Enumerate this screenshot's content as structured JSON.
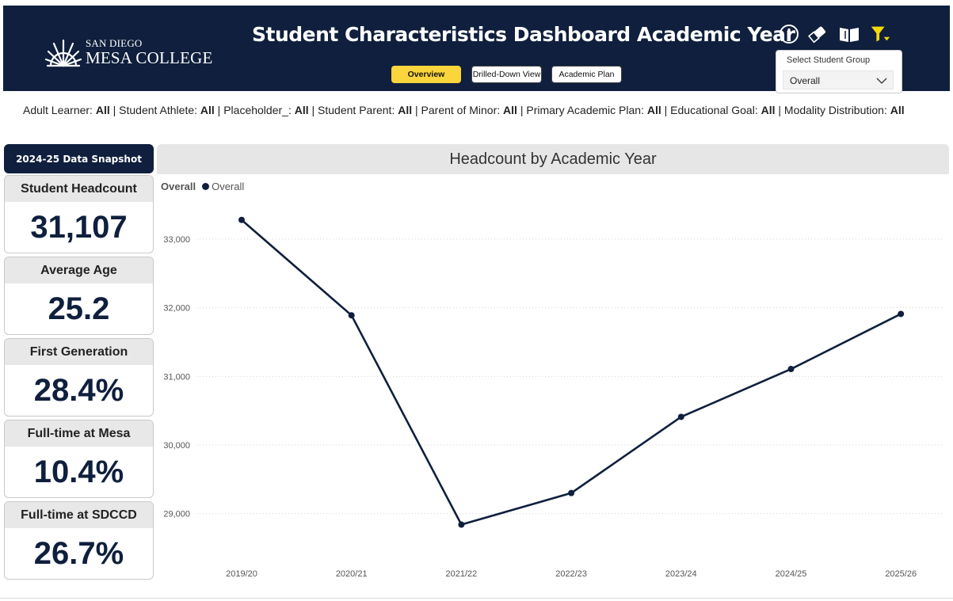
{
  "header": {
    "logo_line1": "SAN DIEGO",
    "logo_line2": "MESA COLLEGE",
    "title": "Student Characteristics Dashboard Academic Year",
    "nav": [
      {
        "label": "Overview",
        "active": true
      },
      {
        "label": "Drilled-Down View",
        "active": false
      },
      {
        "label": "Academic Plan",
        "active": false
      }
    ],
    "icons": [
      "info-icon",
      "eraser-icon",
      "book-icon",
      "filter-icon"
    ],
    "student_group": {
      "label": "Select Student Group",
      "value": "Overall"
    }
  },
  "filters": [
    {
      "name": "Adult Learner:",
      "value": "All"
    },
    {
      "name": "Student Athlete:",
      "value": "All"
    },
    {
      "name": "Placeholder_:",
      "value": "All"
    },
    {
      "name": "Student Parent:",
      "value": "All"
    },
    {
      "name": "Parent of Minor:",
      "value": "All"
    },
    {
      "name": "Primary Academic Plan:",
      "value": "All"
    },
    {
      "name": "Educational Goal:",
      "value": "All"
    },
    {
      "name": "Modality Distribution:",
      "value": "All"
    }
  ],
  "snapshot": {
    "title": "2024-25 Data Snapshot",
    "cards": [
      {
        "label": "Student Headcount",
        "value": "31,107"
      },
      {
        "label": "Average Age",
        "value": "25.2"
      },
      {
        "label": "First Generation",
        "value": "28.4%"
      },
      {
        "label": "Full-time at Mesa",
        "value": "10.4%"
      },
      {
        "label": "Full-time at SDCCD",
        "value": "26.7%"
      }
    ]
  },
  "colors": {
    "navy": "#0f1f3d",
    "accent_yellow": "#fbd53c"
  },
  "chart_data": {
    "type": "line",
    "title": "Headcount by Academic Year",
    "legend_title": "Overall",
    "categories": [
      "2019/20",
      "2020/21",
      "2021/22",
      "2022/23",
      "2023/24",
      "2024/25",
      "2025/26"
    ],
    "series": [
      {
        "name": "Overall",
        "values": [
          33280,
          31890,
          28840,
          29300,
          30410,
          31107,
          31910
        ]
      }
    ],
    "ylim": [
      28500,
      33600
    ],
    "yticks": [
      29000,
      30000,
      31000,
      32000,
      33000
    ],
    "ytick_labels": [
      "29,000",
      "30,000",
      "31,000",
      "32,000",
      "33,000"
    ],
    "grid": true,
    "legend_position": "top-left"
  }
}
